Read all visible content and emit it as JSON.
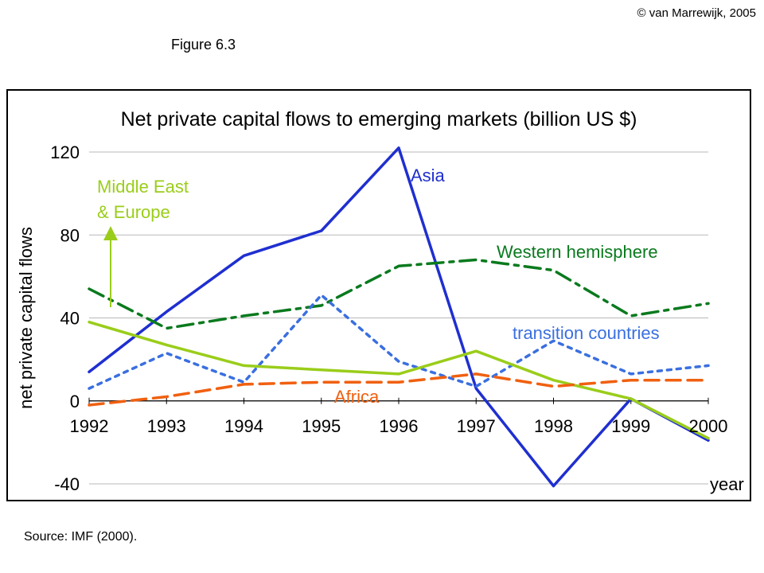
{
  "header": {
    "copyright": "© van Marrewijk, 2005",
    "figure_label": "Figure 6.3"
  },
  "footer": {
    "source": "Source: IMF (2000)."
  },
  "chart_data": {
    "type": "line",
    "title": "Net private capital flows to emerging markets (billion US $)",
    "ylabel": "net private capital flows",
    "xlabel": "year",
    "ylim": [
      -40,
      120
    ],
    "yticks": [
      -40,
      0,
      40,
      80,
      120
    ],
    "x": [
      1992,
      1993,
      1994,
      1995,
      1996,
      1997,
      1998,
      1999,
      2000
    ],
    "grid": true,
    "series": [
      {
        "name": "Asia",
        "color": "#1f2fd0",
        "dash": "solid",
        "values": [
          14,
          43,
          70,
          82,
          122,
          6,
          -41,
          1,
          -19
        ]
      },
      {
        "name": "Western hemisphere",
        "color": "#0a7a1e",
        "dash": "dashdot",
        "values": [
          54,
          35,
          41,
          46,
          65,
          68,
          63,
          41,
          47
        ]
      },
      {
        "name": "transition countries",
        "color": "#3a6fe0",
        "dash": "dotted",
        "values": [
          6,
          23,
          9,
          51,
          19,
          7,
          29,
          13,
          17
        ]
      },
      {
        "name": "Middle East & Europe",
        "color": "#9acd1a",
        "dash": "solid",
        "values": [
          38,
          27,
          17,
          15,
          13,
          24,
          10,
          1,
          -18
        ]
      },
      {
        "name": "Africa",
        "color": "#f06010",
        "dash": "dashed",
        "values": [
          -2,
          2,
          8,
          9,
          9,
          13,
          7,
          10,
          10
        ]
      }
    ],
    "annotations": {
      "asia": "Asia",
      "western": "Western hemisphere",
      "transition": "transition countries",
      "africa": "Africa",
      "mideast_line1": "Middle East",
      "mideast_line2": "& Europe"
    }
  }
}
